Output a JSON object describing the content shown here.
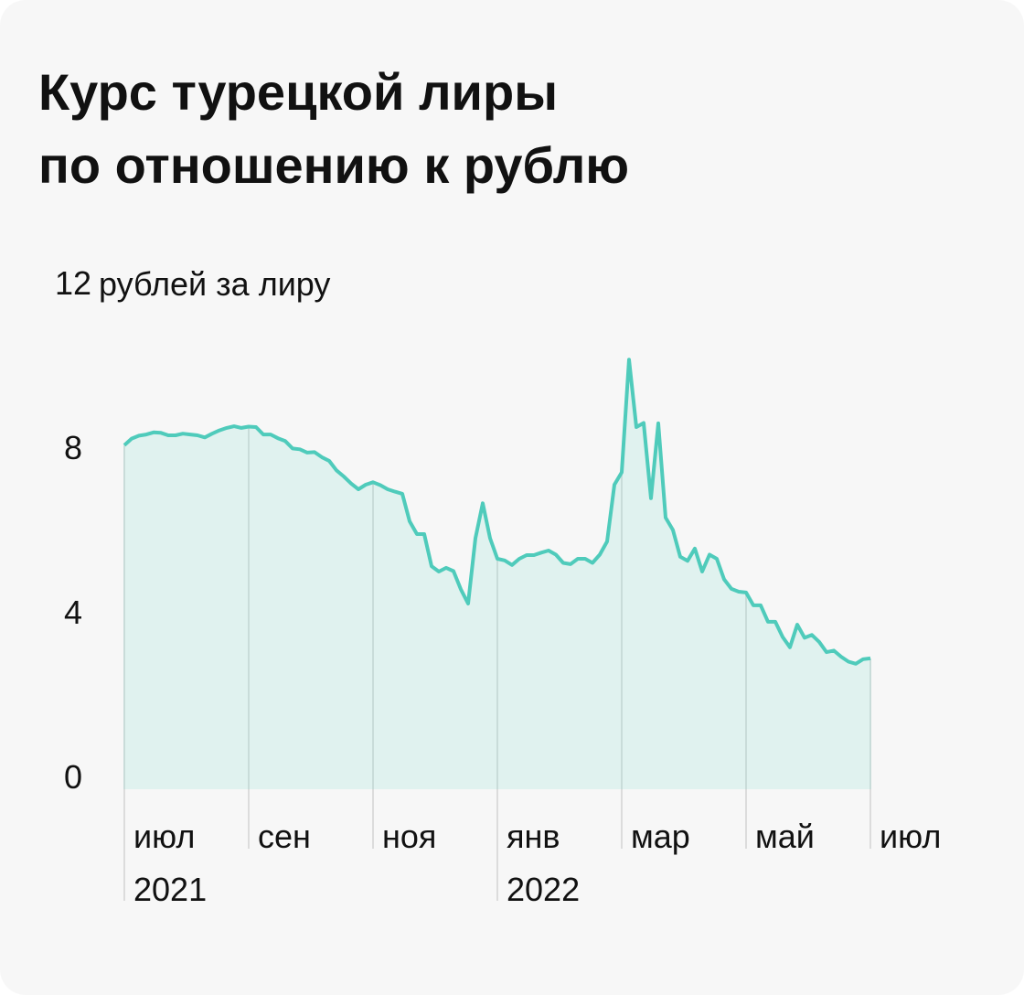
{
  "chart_data": {
    "type": "area_line",
    "title_lines": [
      "Курс турецкой лиры",
      "по отношению к рублю"
    ],
    "y_label": "рублей за лиру",
    "ylim": [
      0,
      12
    ],
    "yticks": [
      0,
      4,
      8,
      12
    ],
    "xticks": [
      {
        "label": "июл",
        "year": "2021"
      },
      {
        "label": "сен"
      },
      {
        "label": "ноя"
      },
      {
        "label": "янв",
        "year": "2022"
      },
      {
        "label": "мар"
      },
      {
        "label": "май"
      },
      {
        "label": "июл"
      }
    ],
    "series": [
      {
        "color": "#4fcbbb",
        "fill": "#e0f2ef",
        "values": [
          8.36,
          8.52,
          8.59,
          8.62,
          8.67,
          8.66,
          8.6,
          8.6,
          8.64,
          8.62,
          8.6,
          8.55,
          8.64,
          8.72,
          8.78,
          8.82,
          8.78,
          8.81,
          8.8,
          8.62,
          8.62,
          8.53,
          8.46,
          8.28,
          8.26,
          8.18,
          8.19,
          8.07,
          7.98,
          7.75,
          7.6,
          7.43,
          7.29,
          7.4,
          7.46,
          7.39,
          7.29,
          7.23,
          7.18,
          6.51,
          6.2,
          6.2,
          5.42,
          5.29,
          5.38,
          5.3,
          4.86,
          4.51,
          6.1,
          6.95,
          6.1,
          5.6,
          5.56,
          5.45,
          5.6,
          5.69,
          5.69,
          5.75,
          5.8,
          5.7,
          5.5,
          5.47,
          5.6,
          5.6,
          5.5,
          5.7,
          6.02,
          7.4,
          7.7,
          10.44,
          8.8,
          8.9,
          7.07,
          8.89,
          6.6,
          6.3,
          5.65,
          5.55,
          5.85,
          5.29,
          5.7,
          5.6,
          5.1,
          4.87,
          4.8,
          4.78,
          4.47,
          4.47,
          4.07,
          4.07,
          3.7,
          3.45,
          4.0,
          3.68,
          3.75,
          3.58,
          3.33,
          3.37,
          3.22,
          3.1,
          3.05,
          3.16,
          3.18
        ]
      }
    ]
  }
}
